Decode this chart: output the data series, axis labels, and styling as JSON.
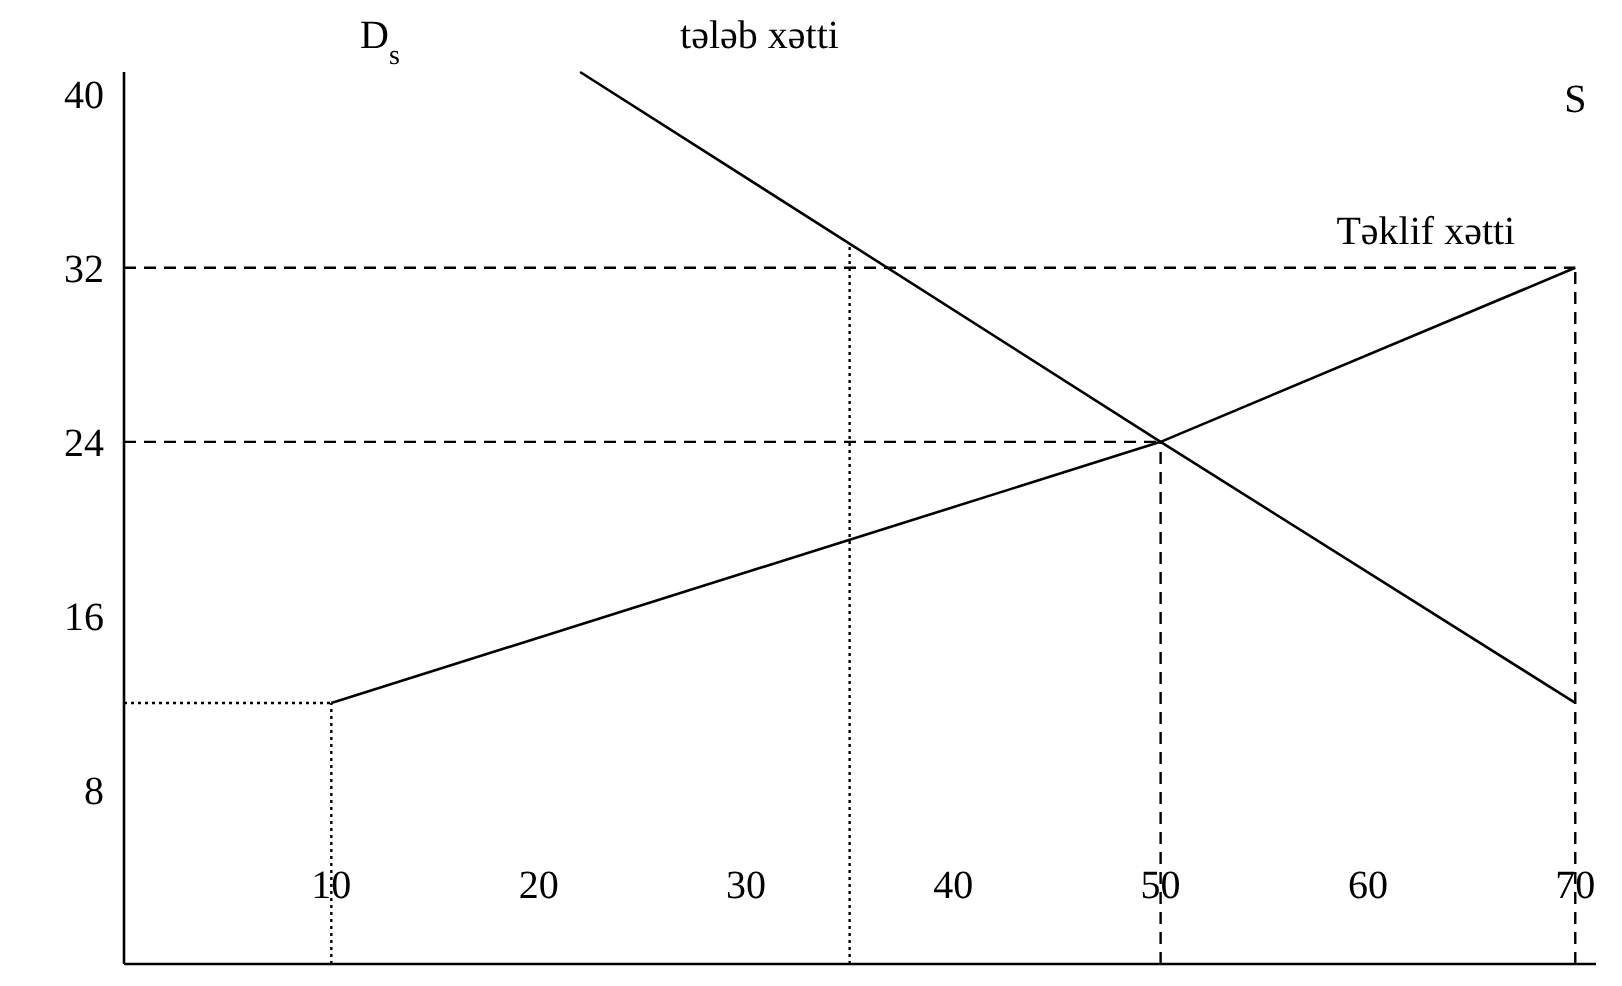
{
  "chart_data": {
    "type": "line",
    "xlim": [
      0,
      71
    ],
    "ylim": [
      0,
      41
    ],
    "xticks": [
      10,
      20,
      30,
      40,
      50,
      60,
      70
    ],
    "yticks": [
      8,
      16,
      24,
      32,
      40
    ],
    "grid": false,
    "line_style": "solid",
    "series": [
      {
        "name": "Təklif xətti",
        "color": "#000000",
        "x": [
          10,
          50,
          70
        ],
        "values": [
          12,
          24,
          32
        ]
      },
      {
        "name": "tələb xətti",
        "color": "#000000",
        "x": [
          22,
          50,
          70
        ],
        "values": [
          41,
          24,
          12
        ]
      }
    ],
    "annotations": [
      "S",
      "D$_{s}$"
    ],
    "ref_lines": [
      {
        "axis": "y",
        "value": 32,
        "line_style": "dashed",
        "color": "#000000"
      },
      {
        "axis": "y",
        "value": 24,
        "line_style": "dashed",
        "color": "#000000"
      },
      {
        "axis": "y",
        "value": 12,
        "line_style": "dotted",
        "color": "#000000"
      },
      {
        "axis": "x",
        "value": 10,
        "line_style": "dotted",
        "color": "#000000"
      },
      {
        "axis": "x",
        "value": 35,
        "line_style": "dotted",
        "color": "#000000"
      },
      {
        "axis": "x",
        "value": 50,
        "line_style": "dashed",
        "color": "#000000"
      },
      {
        "axis": "x",
        "value": 70,
        "line_style": "dashed",
        "color": "#000000"
      }
    ]
  }
}
